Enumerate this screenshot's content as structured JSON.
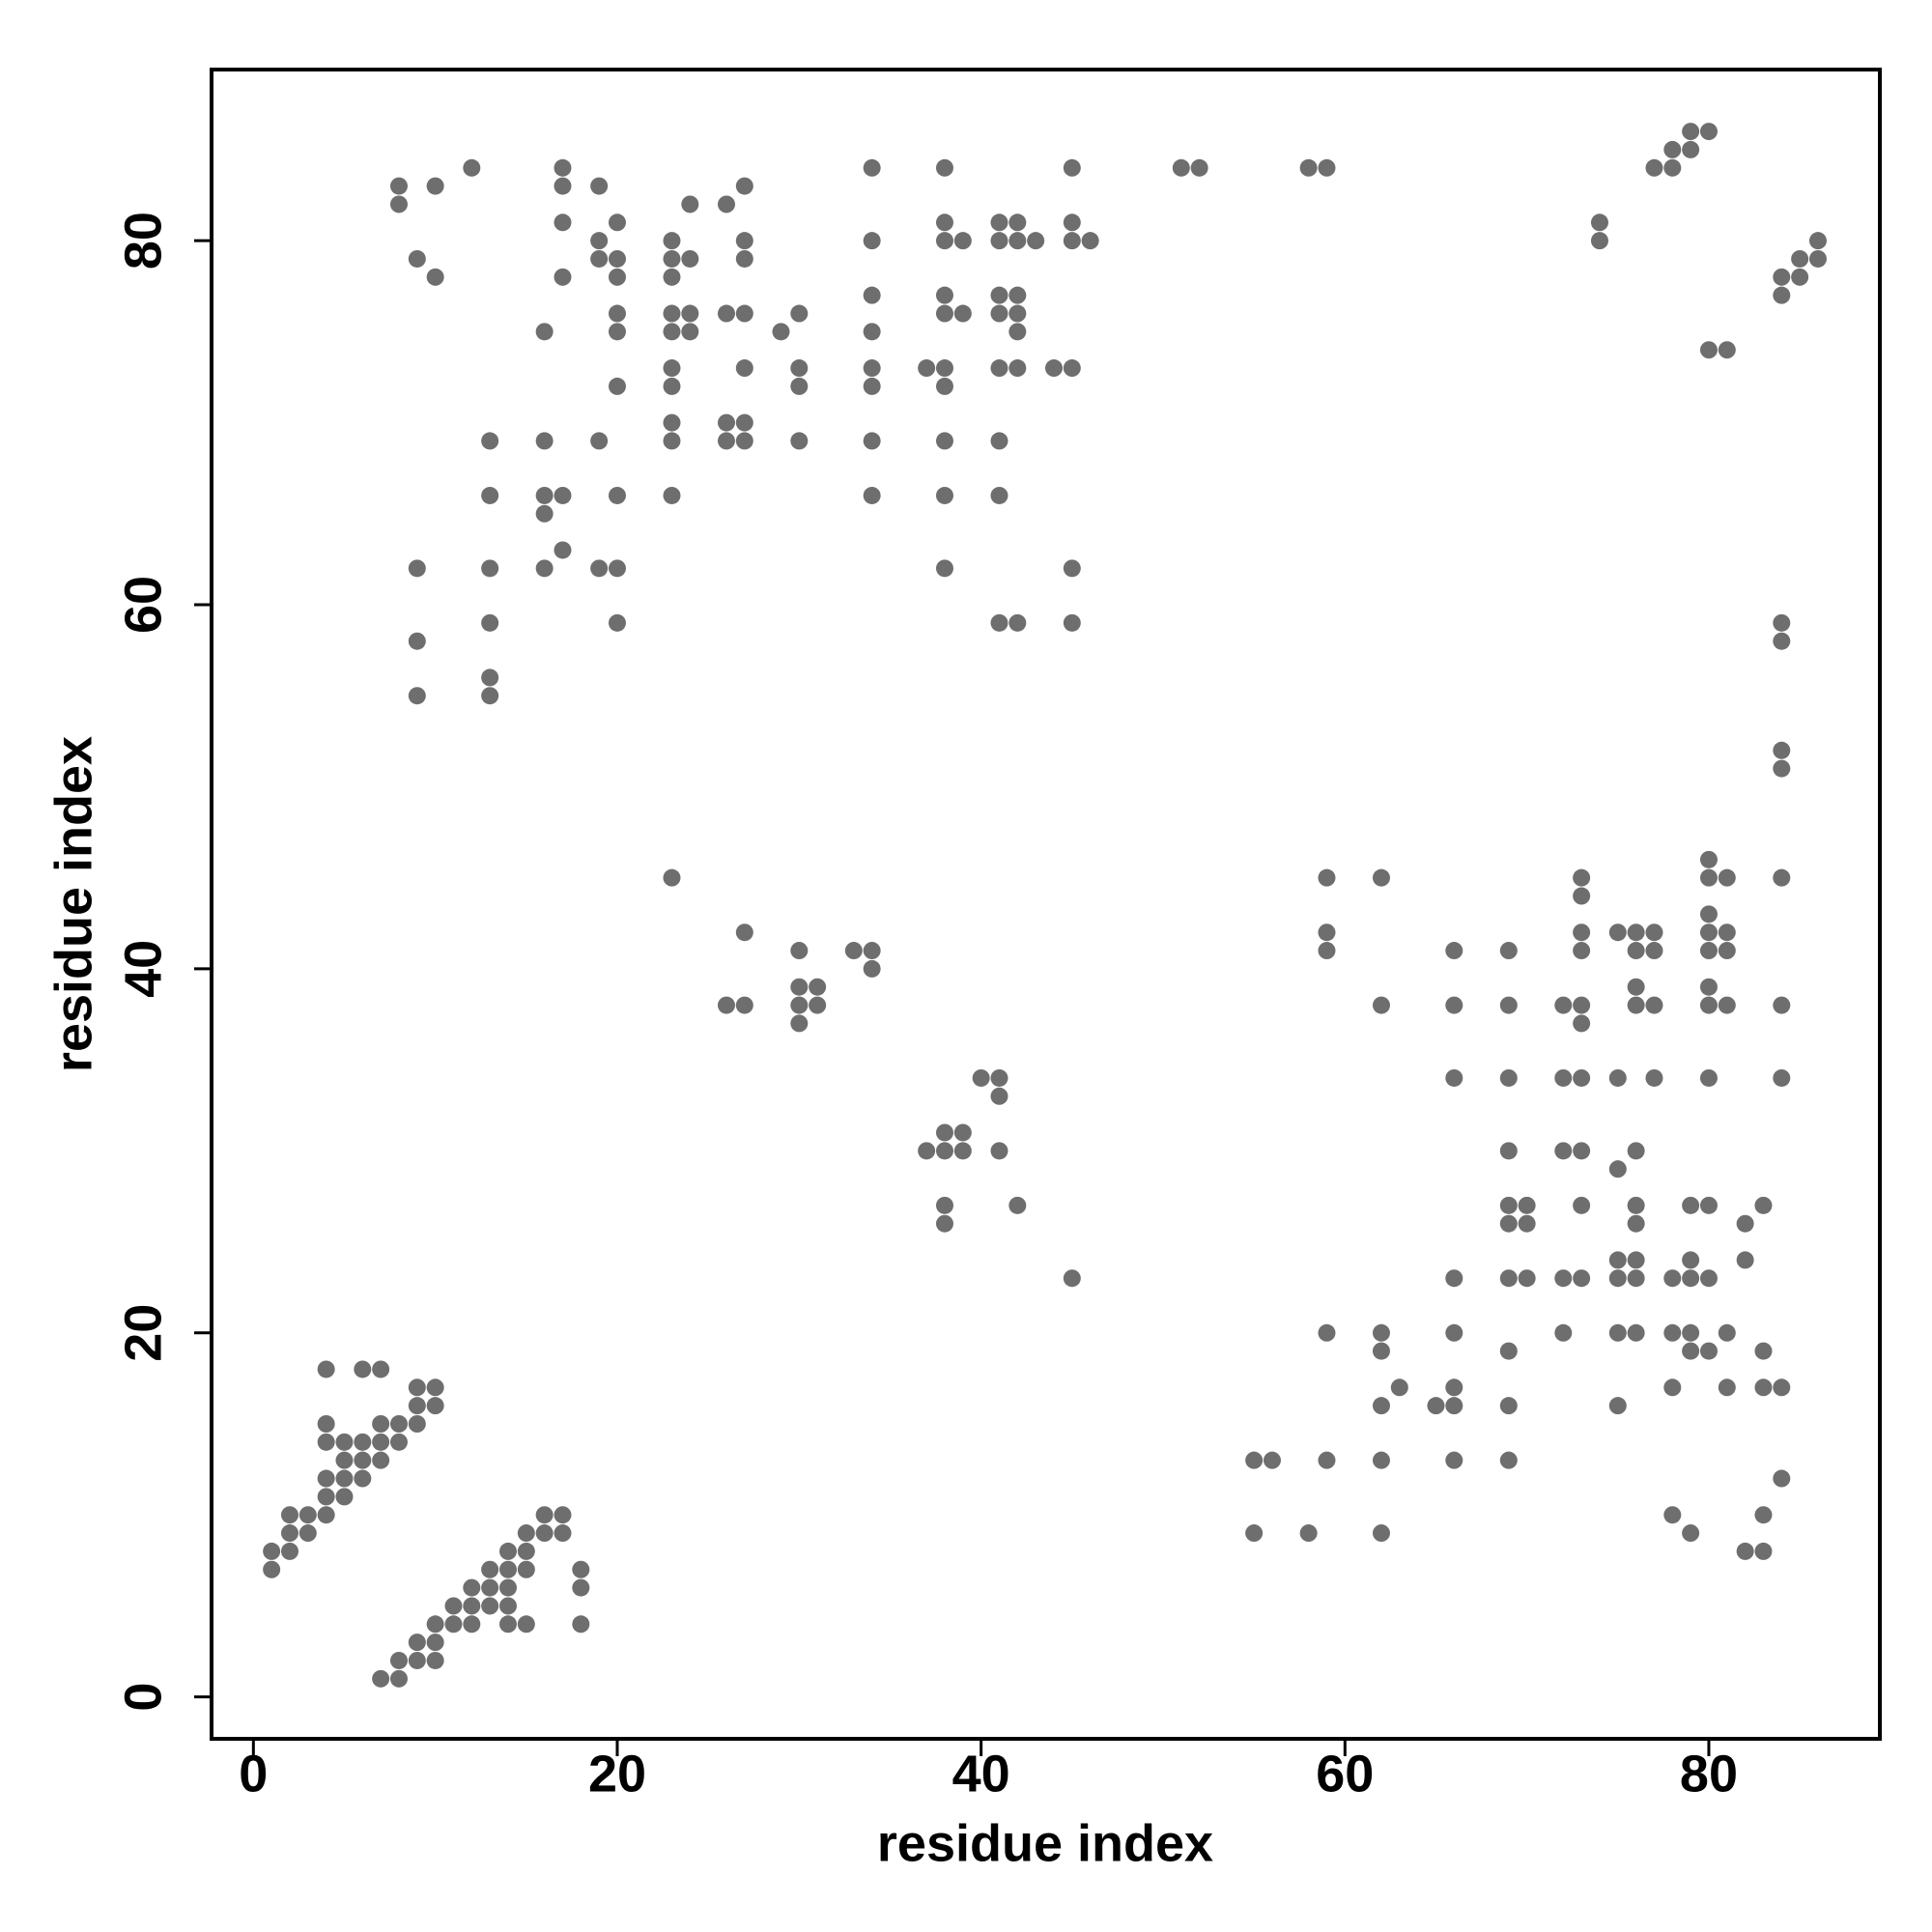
{
  "chart_data": {
    "type": "scatter",
    "x_label": "residue index",
    "y_label": "residue index",
    "x": [
      1,
      1,
      2,
      2,
      2,
      3,
      3,
      4,
      4,
      4,
      4,
      4,
      4,
      5,
      5,
      5,
      5,
      6,
      6,
      6,
      6,
      7,
      7,
      7,
      7,
      8,
      8,
      9,
      9,
      9,
      10,
      10,
      7,
      8,
      8,
      9,
      9,
      10,
      10,
      10,
      11,
      11,
      12,
      12,
      12,
      13,
      13,
      13,
      14,
      14,
      14,
      14,
      14,
      15,
      15,
      15,
      15,
      16,
      16,
      17,
      17,
      18,
      18,
      18,
      8,
      8,
      9,
      9,
      9,
      9,
      10,
      10,
      12,
      13,
      13,
      13,
      13,
      13,
      13,
      16,
      16,
      16,
      16,
      16,
      17,
      17,
      17,
      17,
      17,
      17,
      19,
      19,
      19,
      19,
      19,
      20,
      20,
      20,
      20,
      20,
      20,
      20,
      20,
      20,
      23,
      23,
      23,
      23,
      23,
      23,
      23,
      23,
      23,
      23,
      24,
      24,
      24,
      24,
      26,
      26,
      26,
      26,
      27,
      27,
      27,
      27,
      27,
      27,
      27,
      29,
      30,
      30,
      30,
      30,
      34,
      34,
      34,
      34,
      34,
      34,
      34,
      34,
      37,
      38,
      38,
      38,
      38,
      38,
      38,
      38,
      38,
      38,
      38,
      39,
      39,
      41,
      41,
      41,
      41,
      41,
      41,
      41,
      41,
      42,
      42,
      42,
      42,
      42,
      42,
      42,
      43,
      44,
      45,
      45,
      45,
      45,
      45,
      45,
      46,
      51,
      52,
      58,
      59,
      23,
      26,
      27,
      27,
      30,
      30,
      30,
      30,
      31,
      31,
      33,
      34,
      34,
      37,
      38,
      38,
      38,
      38,
      39,
      39,
      40,
      41,
      41,
      41,
      42,
      45,
      74,
      74,
      77,
      78,
      78,
      79,
      79,
      80,
      80,
      81,
      84,
      84,
      85,
      85,
      86,
      86,
      84,
      84,
      84,
      84,
      84,
      84,
      84,
      84,
      84,
      59,
      59,
      59,
      62,
      62,
      66,
      66,
      66,
      69,
      69,
      69,
      69,
      69,
      69,
      69,
      69,
      69,
      69,
      70,
      70,
      70,
      72,
      72,
      72,
      72,
      72,
      73,
      73,
      73,
      73,
      73,
      73,
      73,
      73,
      73,
      73,
      75,
      75,
      75,
      75,
      75,
      75,
      75,
      76,
      76,
      76,
      76,
      76,
      76,
      76,
      76,
      76,
      76,
      77,
      77,
      77,
      77,
      78,
      78,
      78,
      78,
      79,
      79,
      79,
      79,
      79,
      79,
      80,
      80,
      80,
      80,
      80,
      80,
      80,
      80,
      80,
      80,
      80,
      81,
      81,
      81,
      81,
      81,
      81,
      82,
      82,
      82,
      83,
      83,
      83,
      83,
      83,
      55,
      55,
      56,
      58,
      59,
      59,
      62,
      62,
      62,
      62,
      62,
      63,
      65,
      66,
      66,
      66,
      66,
      66
    ],
    "values": [
      7,
      8,
      8,
      9,
      10,
      9,
      10,
      10,
      11,
      12,
      14,
      15,
      18,
      11,
      12,
      13,
      14,
      12,
      13,
      14,
      18,
      13,
      14,
      15,
      18,
      14,
      15,
      15,
      16,
      17,
      16,
      17,
      1,
      1,
      2,
      2,
      3,
      2,
      3,
      4,
      4,
      5,
      4,
      5,
      6,
      5,
      6,
      7,
      4,
      5,
      6,
      7,
      8,
      4,
      7,
      8,
      9,
      9,
      10,
      9,
      10,
      4,
      6,
      7,
      82,
      83,
      79,
      62,
      58,
      55,
      83,
      78,
      84,
      69,
      66,
      62,
      59,
      56,
      55,
      75,
      69,
      66,
      65,
      62,
      84,
      83,
      81,
      78,
      66,
      63,
      83,
      80,
      79,
      69,
      62,
      81,
      79,
      78,
      76,
      75,
      72,
      66,
      62,
      59,
      80,
      79,
      78,
      76,
      75,
      73,
      72,
      70,
      69,
      66,
      82,
      79,
      76,
      75,
      82,
      76,
      70,
      69,
      83,
      80,
      79,
      76,
      73,
      70,
      69,
      75,
      76,
      73,
      72,
      69,
      84,
      80,
      77,
      75,
      73,
      72,
      69,
      66,
      73,
      84,
      81,
      80,
      77,
      76,
      73,
      72,
      69,
      66,
      62,
      80,
      76,
      81,
      80,
      77,
      76,
      73,
      69,
      66,
      59,
      81,
      80,
      77,
      76,
      75,
      73,
      59,
      80,
      73,
      84,
      81,
      80,
      73,
      62,
      59,
      80,
      84,
      84,
      84,
      84,
      45,
      38,
      42,
      38,
      41,
      39,
      38,
      37,
      39,
      38,
      41,
      41,
      40,
      30,
      31,
      30,
      27,
      26,
      31,
      30,
      34,
      34,
      33,
      30,
      27,
      23,
      81,
      80,
      84,
      84,
      85,
      85,
      86,
      86,
      74,
      74,
      78,
      77,
      79,
      78,
      80,
      79,
      59,
      58,
      52,
      51,
      45,
      38,
      34,
      17,
      12,
      45,
      42,
      41,
      45,
      38,
      41,
      38,
      34,
      41,
      38,
      34,
      30,
      27,
      26,
      23,
      19,
      16,
      13,
      27,
      26,
      23,
      38,
      34,
      30,
      23,
      20,
      45,
      44,
      42,
      41,
      38,
      37,
      34,
      30,
      27,
      23,
      42,
      34,
      29,
      24,
      23,
      20,
      16,
      42,
      41,
      39,
      38,
      30,
      27,
      26,
      24,
      23,
      20,
      42,
      41,
      38,
      34,
      23,
      20,
      17,
      10,
      27,
      24,
      23,
      20,
      19,
      9,
      46,
      45,
      43,
      42,
      41,
      39,
      38,
      34,
      27,
      23,
      19,
      45,
      42,
      41,
      38,
      20,
      17,
      26,
      24,
      8,
      27,
      19,
      17,
      10,
      8,
      13,
      9,
      13,
      9,
      20,
      13,
      20,
      19,
      16,
      13,
      9,
      17,
      16,
      23,
      20,
      17,
      16,
      13
    ],
    "color": "#555555",
    "xlim": [
      -2.3,
      89.4
    ],
    "ylim": [
      -2.3,
      89.4
    ],
    "xticks": [
      0,
      20,
      40,
      60,
      80
    ],
    "yticks": [
      0,
      20,
      40,
      60,
      80
    ],
    "grid": false
  }
}
